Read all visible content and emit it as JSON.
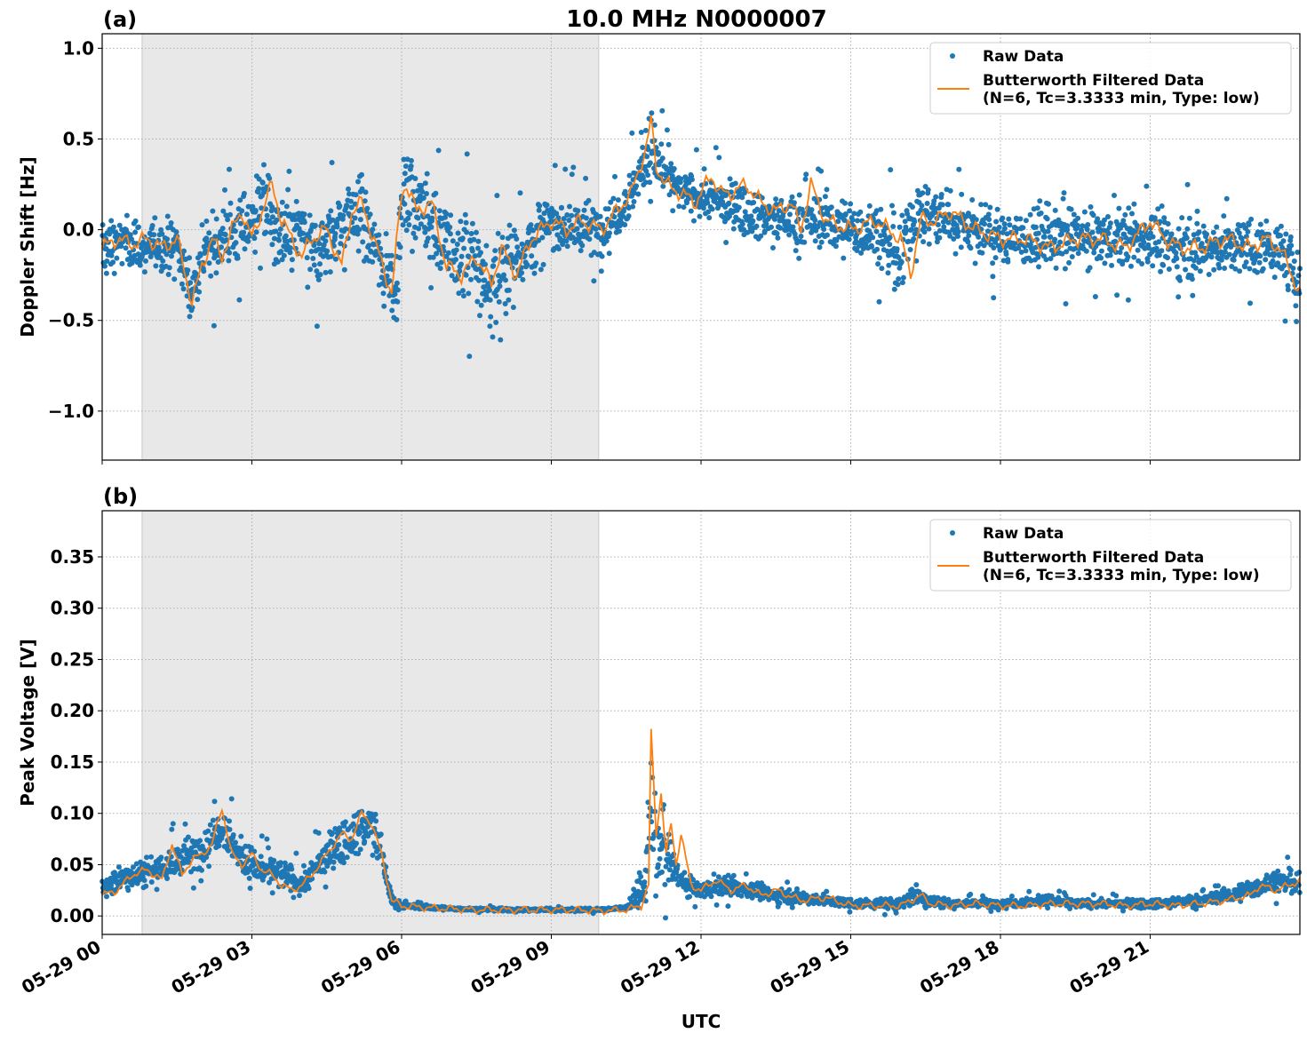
{
  "figure": {
    "title": "10.0 MHz N0000007",
    "xlabel": "UTC",
    "xticks": [
      "05-29 00",
      "05-29 03",
      "05-29 06",
      "05-29 09",
      "05-29 12",
      "05-29 15",
      "05-29 18",
      "05-29 21"
    ],
    "colors": {
      "raw": "#1f77b4",
      "filtered": "#ff7f0e",
      "shade": "#e8e8e8",
      "grid": "#b0b0b0"
    }
  },
  "chart_data": [
    {
      "type": "scatter",
      "panel_label": "(a)",
      "ylabel": "Doppler Shift [Hz]",
      "xlim_hours": [
        0,
        24
      ],
      "ylim": [
        -1.27,
        1.08
      ],
      "yticks": [
        1.0,
        0.5,
        0.0,
        -0.5,
        -1.0
      ],
      "ytick_labels": [
        "1.0",
        "0.5",
        "0.0",
        "−0.5",
        "−1.0"
      ],
      "shaded_interval_hours": [
        0.8,
        9.95
      ],
      "grid": true,
      "legend_position": "upper right",
      "legend": [
        "Raw Data",
        "Butterworth Filtered Data",
        "(N=6, Tc=3.3333 min, Type: low)"
      ],
      "series": [
        {
          "name": "Raw Data",
          "style": "markers",
          "x_hours": [
            0,
            0.5,
            0.8,
            1.0,
            1.5,
            1.8,
            2.0,
            2.4,
            3.0,
            3.2,
            3.5,
            4.0,
            4.3,
            4.8,
            5.2,
            5.6,
            5.9,
            6.0,
            6.2,
            6.6,
            7.0,
            7.4,
            7.8,
            8.0,
            8.5,
            9.0,
            9.5,
            10.0,
            10.5,
            11.0,
            11.3,
            11.6,
            12.0,
            12.5,
            13.0,
            13.5,
            14.0,
            14.5,
            15.0,
            15.5,
            16.0,
            16.2,
            16.5,
            17.0,
            17.5,
            18.0,
            18.5,
            19.0,
            19.5,
            20.0,
            20.5,
            21.0,
            21.5,
            22.0,
            22.5,
            23.0,
            23.5,
            24.0
          ],
          "center": [
            -0.1,
            -0.05,
            -0.12,
            -0.08,
            -0.1,
            -0.35,
            -0.15,
            -0.05,
            0.05,
            0.2,
            -0.05,
            0.0,
            -0.15,
            0.05,
            0.1,
            -0.2,
            -0.3,
            0.15,
            0.2,
            0.05,
            -0.15,
            -0.15,
            -0.35,
            -0.2,
            -0.1,
            0.05,
            0.0,
            0.0,
            0.15,
            0.45,
            0.3,
            0.2,
            0.18,
            0.15,
            0.1,
            0.05,
            0.05,
            0.05,
            0.0,
            0.0,
            -0.2,
            0.05,
            0.1,
            0.05,
            0.0,
            -0.05,
            -0.05,
            -0.05,
            -0.05,
            -0.05,
            -0.05,
            -0.05,
            -0.1,
            -0.1,
            -0.1,
            -0.1,
            -0.1,
            -0.25
          ],
          "spread": [
            0.25,
            0.25,
            0.25,
            0.25,
            0.25,
            0.3,
            0.35,
            0.4,
            0.4,
            0.35,
            0.4,
            0.4,
            0.4,
            0.4,
            0.4,
            0.4,
            0.45,
            0.4,
            0.4,
            0.45,
            0.5,
            0.5,
            0.5,
            0.45,
            0.4,
            0.3,
            0.3,
            0.3,
            0.25,
            0.4,
            0.25,
            0.2,
            0.25,
            0.25,
            0.25,
            0.25,
            0.25,
            0.3,
            0.3,
            0.35,
            0.4,
            0.35,
            0.35,
            0.3,
            0.3,
            0.3,
            0.3,
            0.3,
            0.3,
            0.3,
            0.3,
            0.3,
            0.3,
            0.3,
            0.3,
            0.3,
            0.3,
            0.3
          ]
        },
        {
          "name": "Butterworth Filtered Data",
          "style": "line",
          "x_hours": [
            0,
            0.3,
            0.6,
            0.9,
            1.2,
            1.5,
            1.8,
            2.0,
            2.2,
            2.4,
            2.6,
            2.8,
            3.0,
            3.2,
            3.4,
            3.6,
            3.8,
            4.0,
            4.2,
            4.5,
            4.8,
            5.0,
            5.2,
            5.5,
            5.8,
            6.0,
            6.1,
            6.3,
            6.6,
            6.9,
            7.2,
            7.5,
            7.8,
            8.0,
            8.3,
            8.6,
            9.0,
            9.3,
            9.6,
            10.0,
            10.3,
            10.6,
            10.9,
            11.0,
            11.1,
            11.3,
            11.6,
            11.9,
            12.2,
            12.4,
            12.6,
            12.9,
            13.2,
            13.5,
            13.8,
            14.0,
            14.2,
            14.5,
            15.0,
            15.5,
            16.0,
            16.2,
            16.4,
            16.7,
            17.0,
            17.5,
            18.0,
            18.5,
            19.0,
            19.5,
            20.0,
            20.5,
            21.0,
            21.3,
            21.6,
            22.0,
            22.5,
            23.0,
            23.3,
            23.6,
            24.0
          ],
          "values": [
            -0.1,
            -0.05,
            -0.08,
            -0.05,
            -0.1,
            -0.05,
            -0.4,
            -0.2,
            -0.05,
            -0.15,
            0.0,
            0.1,
            -0.05,
            0.1,
            0.25,
            0.05,
            -0.05,
            -0.15,
            -0.05,
            0.0,
            -0.2,
            0.1,
            0.15,
            -0.1,
            -0.35,
            0.2,
            0.25,
            0.1,
            0.15,
            -0.2,
            -0.25,
            -0.15,
            -0.3,
            -0.1,
            -0.25,
            -0.05,
            0.05,
            0.0,
            0.05,
            0.0,
            0.1,
            0.2,
            0.45,
            0.6,
            0.35,
            0.25,
            0.2,
            0.15,
            0.3,
            0.2,
            0.2,
            0.25,
            0.15,
            0.1,
            0.15,
            0.0,
            0.25,
            0.05,
            0.0,
            0.05,
            -0.05,
            -0.25,
            0.05,
            0.05,
            0.1,
            0.0,
            -0.05,
            -0.05,
            -0.1,
            -0.05,
            -0.05,
            -0.1,
            0.05,
            -0.05,
            -0.1,
            -0.1,
            -0.05,
            -0.1,
            -0.05,
            -0.1,
            -0.35
          ]
        }
      ]
    },
    {
      "type": "scatter",
      "panel_label": "(b)",
      "ylabel": "Peak Voltage [V]",
      "xlim_hours": [
        0,
        24
      ],
      "ylim": [
        -0.018,
        0.395
      ],
      "yticks": [
        0.35,
        0.3,
        0.25,
        0.2,
        0.15,
        0.1,
        0.05,
        0.0
      ],
      "ytick_labels": [
        "0.35",
        "0.30",
        "0.25",
        "0.20",
        "0.15",
        "0.10",
        "0.05",
        "0.00"
      ],
      "shaded_interval_hours": [
        0.8,
        9.95
      ],
      "grid": true,
      "legend_position": "upper right",
      "legend": [
        "Raw Data",
        "Butterworth Filtered Data",
        "(N=6, Tc=3.3333 min, Type: low)"
      ],
      "series": [
        {
          "name": "Raw Data",
          "style": "markers",
          "x_hours": [
            0,
            0.5,
            1.0,
            1.4,
            1.8,
            2.0,
            2.4,
            2.8,
            3.2,
            3.6,
            4.0,
            4.5,
            5.0,
            5.4,
            5.6,
            5.8,
            6.0,
            7.0,
            8.0,
            9.0,
            10.0,
            10.5,
            10.9,
            11.0,
            11.1,
            11.3,
            11.5,
            11.7,
            12.0,
            12.5,
            13.0,
            13.5,
            14.0,
            15.0,
            16.0,
            16.3,
            16.6,
            17.0,
            18.0,
            19.0,
            19.5,
            20.0,
            21.0,
            22.0,
            22.5,
            23.0,
            23.5,
            24.0
          ],
          "center": [
            0.025,
            0.04,
            0.045,
            0.05,
            0.06,
            0.065,
            0.09,
            0.055,
            0.045,
            0.04,
            0.03,
            0.06,
            0.08,
            0.09,
            0.06,
            0.015,
            0.01,
            0.007,
            0.006,
            0.006,
            0.006,
            0.008,
            0.03,
            0.12,
            0.06,
            0.06,
            0.04,
            0.03,
            0.025,
            0.03,
            0.025,
            0.02,
            0.018,
            0.012,
            0.012,
            0.02,
            0.015,
            0.012,
            0.012,
            0.015,
            0.012,
            0.012,
            0.012,
            0.015,
            0.02,
            0.025,
            0.035,
            0.03
          ],
          "spread": [
            0.02,
            0.025,
            0.03,
            0.035,
            0.035,
            0.04,
            0.04,
            0.035,
            0.03,
            0.03,
            0.025,
            0.035,
            0.04,
            0.045,
            0.04,
            0.01,
            0.005,
            0.003,
            0.003,
            0.003,
            0.003,
            0.004,
            0.04,
            0.12,
            0.08,
            0.05,
            0.03,
            0.02,
            0.015,
            0.018,
            0.015,
            0.012,
            0.012,
            0.008,
            0.01,
            0.02,
            0.012,
            0.008,
            0.008,
            0.01,
            0.008,
            0.008,
            0.008,
            0.01,
            0.012,
            0.018,
            0.022,
            0.02
          ]
        },
        {
          "name": "Butterworth Filtered Data",
          "style": "line",
          "x_hours": [
            0,
            0.3,
            0.6,
            0.9,
            1.2,
            1.4,
            1.6,
            1.8,
            2.0,
            2.2,
            2.4,
            2.6,
            2.8,
            3.0,
            3.2,
            3.4,
            3.6,
            3.8,
            4.0,
            4.2,
            4.5,
            4.8,
            5.0,
            5.2,
            5.4,
            5.6,
            5.8,
            6.0,
            6.5,
            7.0,
            7.5,
            8.0,
            8.5,
            9.0,
            9.5,
            10.0,
            10.5,
            10.8,
            10.95,
            11.0,
            11.1,
            11.2,
            11.3,
            11.4,
            11.5,
            11.6,
            11.8,
            12.0,
            12.3,
            12.6,
            12.9,
            13.2,
            13.5,
            14.0,
            14.5,
            15.0,
            15.5,
            16.0,
            16.2,
            16.4,
            16.6,
            17.0,
            17.5,
            18.0,
            18.5,
            19.0,
            19.5,
            20.0,
            20.5,
            21.0,
            21.5,
            22.0,
            22.5,
            22.8,
            23.0,
            23.2,
            23.5,
            23.8,
            24.0
          ],
          "values": [
            0.02,
            0.025,
            0.04,
            0.045,
            0.035,
            0.07,
            0.04,
            0.055,
            0.06,
            0.07,
            0.105,
            0.06,
            0.05,
            0.06,
            0.045,
            0.04,
            0.03,
            0.025,
            0.03,
            0.04,
            0.06,
            0.08,
            0.075,
            0.1,
            0.09,
            0.06,
            0.015,
            0.01,
            0.008,
            0.007,
            0.006,
            0.006,
            0.006,
            0.006,
            0.006,
            0.005,
            0.006,
            0.01,
            0.03,
            0.18,
            0.08,
            0.12,
            0.06,
            0.09,
            0.05,
            0.08,
            0.03,
            0.025,
            0.035,
            0.025,
            0.03,
            0.02,
            0.025,
            0.015,
            0.018,
            0.01,
            0.01,
            0.01,
            0.015,
            0.02,
            0.012,
            0.01,
            0.012,
            0.01,
            0.01,
            0.012,
            0.012,
            0.012,
            0.01,
            0.012,
            0.01,
            0.012,
            0.015,
            0.018,
            0.02,
            0.03,
            0.025,
            0.03,
            0.035
          ]
        }
      ]
    }
  ]
}
